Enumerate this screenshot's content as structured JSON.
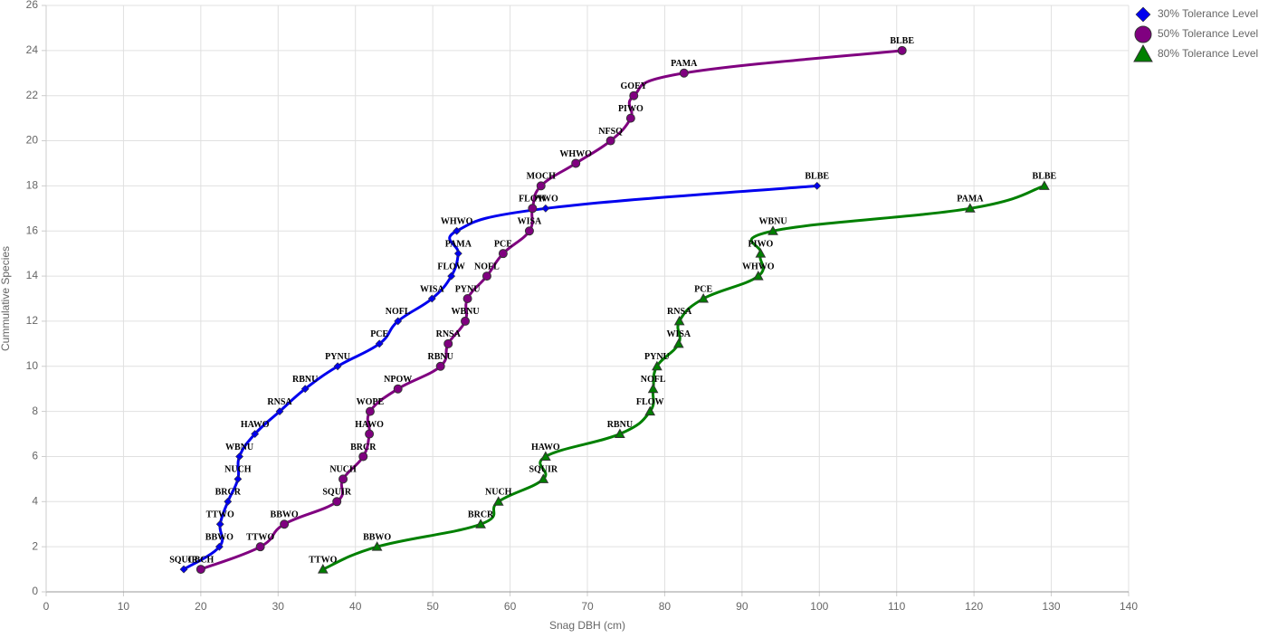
{
  "chart_data": {
    "type": "line",
    "x_label": "Snag DBH (cm)",
    "y_label": "Cummulative Species",
    "xlim": [
      0,
      140
    ],
    "xticks": [
      0,
      10,
      20,
      30,
      40,
      50,
      60,
      70,
      80,
      90,
      100,
      110,
      120,
      130,
      140
    ],
    "ylim": [
      0,
      26
    ],
    "yticks": [
      0,
      2,
      4,
      6,
      8,
      10,
      12,
      14,
      16,
      18,
      20,
      22,
      24,
      26
    ],
    "grid": true,
    "legend": "top-right",
    "series": [
      {
        "name": "30% Tolerance Level",
        "color": "#0000ee",
        "marker": "diamond",
        "x": [
          17.8,
          22.4,
          22.5,
          23.5,
          24.8,
          25.0,
          27.0,
          30.2,
          33.5,
          37.7,
          43.1,
          45.5,
          49.9,
          52.4,
          53.3,
          53.1,
          64.6,
          99.7
        ],
        "values": [
          1,
          2,
          3,
          4,
          5,
          6,
          7,
          8,
          9,
          10,
          11,
          12,
          13,
          14,
          15,
          16,
          17,
          18
        ],
        "labels": [
          "SQUIR",
          "BBWO",
          "TTWO",
          "BRCR",
          "NUCH",
          "WBNU",
          "HAWO",
          "RNSA",
          "RBNU",
          "PYNU",
          "PCE",
          "NOFL",
          "WISA",
          "FLOW",
          "PAMA",
          "WHWO",
          "PIWO",
          "BLBE"
        ]
      },
      {
        "name": "50% Tolerance Level",
        "color": "#800080",
        "marker": "circle",
        "x": [
          20.0,
          27.7,
          30.8,
          37.6,
          38.4,
          41.0,
          41.8,
          41.9,
          45.5,
          51.0,
          52.0,
          54.2,
          54.5,
          57.0,
          59.1,
          62.5,
          62.9,
          64.0,
          68.5,
          73.0,
          75.6,
          76.0,
          82.5,
          110.7
        ],
        "values": [
          1,
          2,
          3,
          4,
          5,
          6,
          7,
          8,
          9,
          10,
          11,
          12,
          13,
          14,
          15,
          16,
          17,
          18,
          19,
          20,
          21,
          22,
          23,
          24
        ],
        "labels": [
          "CBCH",
          "TTWO",
          "BBWO",
          "SQUIR",
          "NUCH",
          "BRCR",
          "HAWO",
          "WOPE",
          "NPOW",
          "RBNU",
          "RNSA",
          "WBNU",
          "PYNU",
          "NOFL",
          "PCE",
          "WISA",
          "FLOW",
          "MOCH",
          "WHWO",
          "NFSQ",
          "PIWO",
          "GOEY",
          "PAMA",
          "BLBE"
        ]
      },
      {
        "name": "80% Tolerance Level",
        "color": "#008000",
        "marker": "triangle",
        "x": [
          35.8,
          42.8,
          56.2,
          58.5,
          64.3,
          64.6,
          74.2,
          78.1,
          78.5,
          79.0,
          81.8,
          81.9,
          85.0,
          92.1,
          92.4,
          94.0,
          119.5,
          129.1
        ],
        "values": [
          1,
          2,
          3,
          4,
          5,
          6,
          7,
          8,
          9,
          10,
          11,
          12,
          13,
          14,
          15,
          16,
          17,
          18
        ],
        "labels": [
          "TTWO",
          "BBWO",
          "BRCR",
          "NUCH",
          "SQUIR",
          "HAWO",
          "RBNU",
          "FLOW",
          "NOFL",
          "PYNU",
          "WISA",
          "RNSA",
          "PCE",
          "WHWO",
          "PIWO",
          "WBNU",
          "PAMA",
          "BLBE"
        ]
      }
    ]
  }
}
